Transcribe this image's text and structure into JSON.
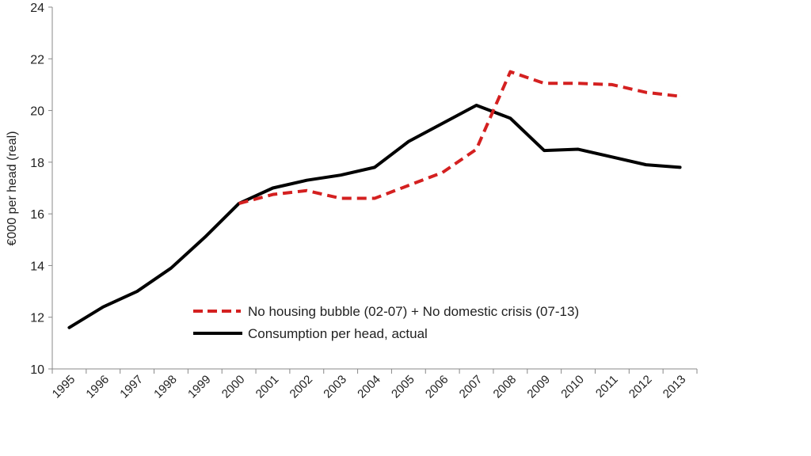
{
  "chart_data": {
    "type": "line",
    "title": "",
    "xlabel": "",
    "ylabel": "€000 per head (real)",
    "ylim": [
      10,
      24
    ],
    "yticks": [
      10,
      12,
      14,
      16,
      18,
      20,
      22,
      24
    ],
    "grid": false,
    "legend_placement": "bottom-center inside plot",
    "categories": [
      "1995",
      "1996",
      "1997",
      "1998",
      "1999",
      "2000",
      "2001",
      "2002",
      "2003",
      "2004",
      "2005",
      "2006",
      "2007",
      "2008",
      "2009",
      "2010",
      "2011",
      "2012",
      "2013"
    ],
    "series": [
      {
        "name": "No housing bubble (02-07) + No domestic crisis (07-13)",
        "color": "#d42020",
        "style": "dashed",
        "values": [
          null,
          null,
          null,
          null,
          null,
          16.4,
          16.75,
          16.9,
          16.6,
          16.6,
          17.1,
          17.6,
          18.5,
          21.5,
          21.05,
          21.05,
          21.0,
          20.7,
          20.55
        ]
      },
      {
        "name": "Consumption per head, actual",
        "color": "#000000",
        "style": "solid",
        "values": [
          11.6,
          12.4,
          13.0,
          13.9,
          15.1,
          16.4,
          17.0,
          17.3,
          17.5,
          17.8,
          18.8,
          19.5,
          20.2,
          19.7,
          18.45,
          18.5,
          18.2,
          17.9,
          17.8
        ]
      }
    ]
  }
}
